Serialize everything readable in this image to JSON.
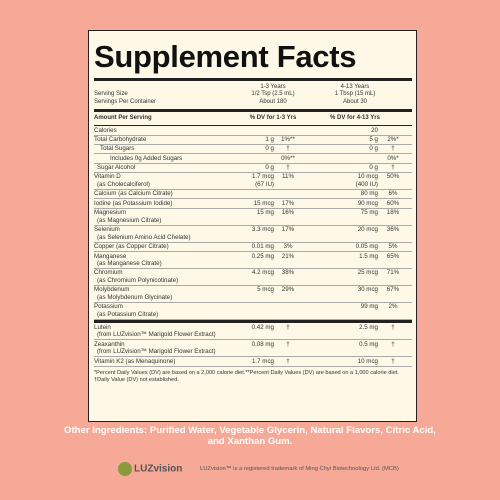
{
  "title": "Supplement Facts",
  "serving": {
    "size_label": "Serving Size",
    "count_label": "Servings Per Container",
    "groups": [
      {
        "age": "1-3 Years",
        "size": "1/2 Tsp (2.5 mL)",
        "count": "About 180"
      },
      {
        "age": "4-13 Years",
        "size": "1 Tbsp (15 mL)",
        "count": "About 30"
      }
    ]
  },
  "table": {
    "header": [
      "Amount Per Serving",
      "% DV for 1-3 Yrs",
      "% DV for 4-13 Yrs"
    ],
    "sections": [
      [
        {
          "name": "Calories",
          "amt2": "20"
        },
        {
          "name": "Total Carbohydrate",
          "amt1": "1 g",
          "dv1": "1%**",
          "amt2": "5 g",
          "dv2": "2%*"
        },
        {
          "name": "Total Sugars",
          "amt1": "0 g",
          "dv1": "†",
          "amt2": "0 g",
          "dv2": "†"
        },
        {
          "name": "Includes 0g Added Sugars",
          "dv1": "0%**",
          "dv2": "0%*"
        },
        {
          "name": "Sugar Alcohol",
          "amt1": "0 g",
          "dv1": "†",
          "amt2": "0 g",
          "dv2": "†"
        },
        {
          "name": "Vitamin D",
          "sub": "(as Cholecalciferol)",
          "amt1": "1.7 mcg",
          "amt1_sub": "(67 IU)",
          "dv1": "11%",
          "amt2": "10 mcg",
          "amt2_sub": "(400 IU)",
          "dv2": "50%"
        },
        {
          "name": "Calcium (as Calcium Citrate)",
          "amt2": "80 mg",
          "dv2": "6%"
        },
        {
          "name": "Iodine (as Potassium Iodide)",
          "amt1": "15 mcg",
          "dv1": "17%",
          "amt2": "90 mcg",
          "dv2": "60%"
        },
        {
          "name": "Magnesium",
          "sub": "(as Magnesium Citrate)",
          "amt1": "15 mg",
          "dv1": "16%",
          "amt2": "75 mg",
          "dv2": "18%"
        },
        {
          "name": "Selenium",
          "sub": "(as Selenium Amino Acid Chelate)",
          "amt1": "3.3 mcg",
          "dv1": "17%",
          "amt2": "20 mcg",
          "dv2": "36%"
        },
        {
          "name": "Copper (as Copper Citrate)",
          "amt1": "0.01 mg",
          "dv1": "3%",
          "amt2": "0.05 mg",
          "dv2": "5%"
        },
        {
          "name": "Manganese",
          "sub": "(as Manganese Citrate)",
          "amt1": "0.25 mg",
          "dv1": "21%",
          "amt2": "1.5 mg",
          "dv2": "65%"
        },
        {
          "name": "Chromium",
          "sub": "(as Chromium Polynicotinate)",
          "amt1": "4.2 mcg",
          "dv1": "38%",
          "amt2": "25 mcg",
          "dv2": "71%"
        },
        {
          "name": "Molybdenum",
          "sub": "(as Molybdenum Glycinate)",
          "amt1": "5 mcg",
          "dv1": "29%",
          "amt2": "30 mcg",
          "dv2": "67%"
        },
        {
          "name": "Potassium",
          "sub": "(as Potassium Citrate)",
          "amt2": "99 mg",
          "dv2": "2%"
        }
      ],
      [
        {
          "name": "Lutein",
          "sub": "(from LUZvision™ Marigold Flower Extract)",
          "amt1": "0.42 mg",
          "dv1": "†",
          "amt2": "2.5 mg",
          "dv2": "†"
        },
        {
          "name": "Zeaxanthin",
          "sub": "(from LUZvision™ Marigold Flower Extract)",
          "amt1": "0.08 mg",
          "dv1": "†",
          "amt2": "0.5 mg",
          "dv2": "†"
        },
        {
          "name": "Vitamin K2 (as Menaquinone)",
          "amt1": "1.7 mcg",
          "dv1": "†",
          "amt2": "10 mcg",
          "dv2": "†"
        }
      ]
    ],
    "footnotes": [
      "*Percent Daily Values (DV) are based on a 2,000 calorie diet.**Percent Daily Values (DV) are based on a 1,000 calorie diet.",
      "†Daily Value (DV) not established."
    ]
  },
  "other_ingredients": "Other Ingredients: Purified Water, Vegetable Glycerin, Natural Flavors, Citric Acid, and Xanthan Gum.",
  "logo": "LUZvision",
  "trademark": "LUZvision™ is a registered trademark of Ming Chyi Biotechnology Ltd. (MCB)"
}
